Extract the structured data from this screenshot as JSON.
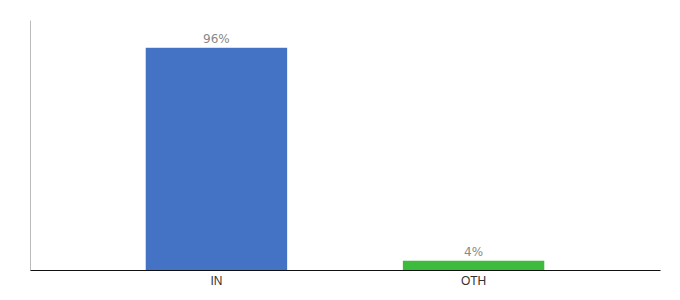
{
  "chart_data": {
    "type": "bar",
    "categories": [
      "IN",
      "OTH"
    ],
    "values": [
      96,
      4
    ],
    "value_labels": [
      "96%",
      "4%"
    ],
    "colors": [
      "#4472c4",
      "#3dbb3d"
    ],
    "ylim": [
      0,
      108
    ],
    "data_labels": true,
    "tick_labels": "x"
  }
}
